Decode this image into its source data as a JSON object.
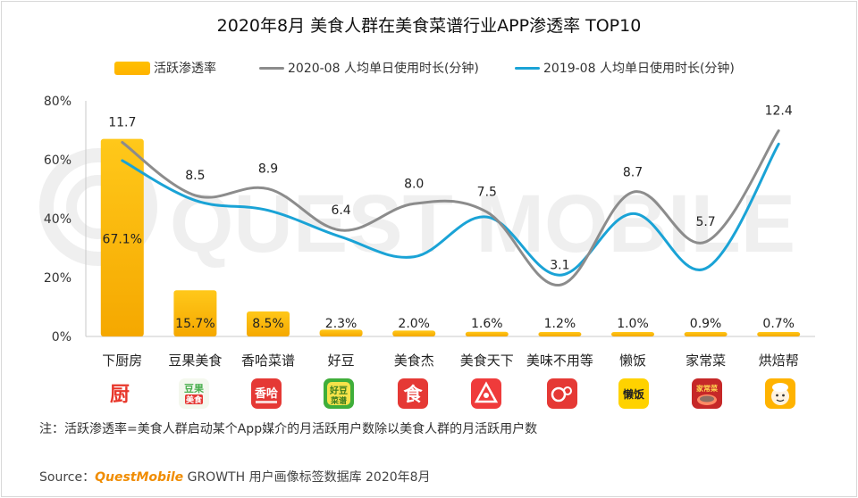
{
  "title": "2020年8月 美食人群在美食菜谱行业APP渗透率 TOP10",
  "colors": {
    "bar": "#ffc000",
    "line_2020": "#8c8c8c",
    "line_2019": "#1aa3d6",
    "brand": "#f08c00"
  },
  "chart_data": {
    "type": "bar",
    "categories": [
      "下厨房",
      "豆果美食",
      "香哈菜谱",
      "好豆",
      "美食杰",
      "美食天下",
      "美味不用等",
      "懒饭",
      "家常菜",
      "烘焙帮"
    ],
    "series": [
      {
        "name": "活跃渗透率",
        "kind": "bar",
        "axis": "left",
        "values": [
          67.1,
          15.7,
          8.5,
          2.3,
          2.0,
          1.6,
          1.2,
          1.0,
          0.9,
          0.7
        ],
        "labels": [
          "67.1%",
          "15.7%",
          "8.5%",
          "2.3%",
          "2.0%",
          "1.6%",
          "1.2%",
          "1.0%",
          "0.9%",
          "0.7%"
        ]
      },
      {
        "name": "2020-08 人均单日使用时长(分钟)",
        "kind": "line",
        "axis": "right",
        "values": [
          11.7,
          8.5,
          8.9,
          6.4,
          8.0,
          7.5,
          3.1,
          8.7,
          5.7,
          12.4
        ],
        "labels": [
          "11.7",
          "8.5",
          "8.9",
          "6.4",
          "8.0",
          "7.5",
          "3.1",
          "8.7",
          "5.7",
          "12.4"
        ]
      },
      {
        "name": "2019-08 人均单日使用时长(分钟)",
        "kind": "line",
        "axis": "right",
        "values": [
          10.6,
          8.2,
          7.6,
          6.0,
          4.8,
          7.2,
          3.7,
          7.4,
          4.1,
          11.6
        ]
      }
    ],
    "yticks": [
      "0%",
      "20%",
      "40%",
      "60%",
      "80%"
    ],
    "ylim": [
      0,
      80
    ],
    "y2lim": [
      0,
      14.2
    ],
    "title": "2020年8月 美食人群在美食菜谱行业APP渗透率 TOP10",
    "legend_position": "top"
  },
  "legend": {
    "bar": "活跃渗透率",
    "line2020": "2020-08 人均单日使用时长(分钟)",
    "line2019": "2019-08 人均单日使用时长(分钟)"
  },
  "icons": [
    "xiachufang-icon",
    "douguo-icon",
    "xianghaha-icon",
    "haodou-icon",
    "meishijie-icon",
    "meishitianxia-icon",
    "meiweibuyongdeng-icon",
    "lanfan-icon",
    "jiachangcai-icon",
    "hongbeibang-icon"
  ],
  "note": "注：活跃渗透率=美食人群启动某个App媒介的月活跃用户数除以美食人群的月活跃用户数",
  "source": {
    "prefix": "Source：",
    "brand": "QuestMobile",
    "suffix": " GROWTH 用户画像标签数据库 2020年8月"
  },
  "watermark": "QUEST MOBILE"
}
